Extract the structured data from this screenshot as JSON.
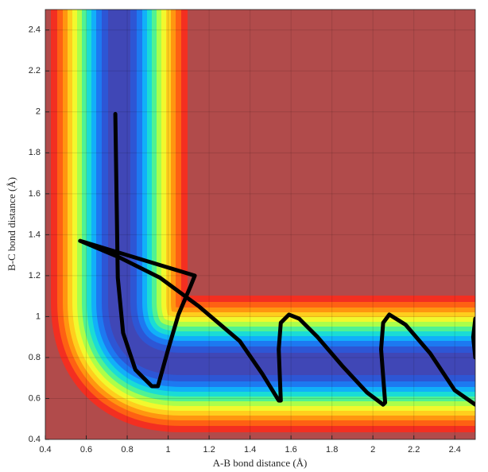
{
  "chart_data": {
    "type": "line",
    "xlabel": "A-B bond distance (Å)",
    "ylabel": "B-C bond distance (Å)",
    "x": [
      0.742,
      0.754,
      0.78,
      0.84,
      0.92,
      0.95,
      1.0,
      1.05,
      1.11,
      1.13,
      0.57,
      0.76,
      0.96,
      1.15,
      1.35,
      1.46,
      1.54,
      1.55,
      1.54,
      1.55,
      1.59,
      1.64,
      1.73,
      1.85,
      1.97,
      2.05,
      2.06,
      2.04,
      2.05,
      2.08,
      2.16,
      2.28,
      2.4,
      2.5,
      null,
      2.5,
      2.49,
      2.5
    ],
    "values": [
      1.99,
      1.19,
      0.92,
      0.74,
      0.66,
      0.66,
      0.84,
      1.01,
      1.15,
      1.2,
      1.37,
      1.29,
      1.19,
      1.05,
      0.88,
      0.72,
      0.59,
      0.59,
      0.84,
      0.97,
      1.01,
      0.99,
      0.9,
      0.76,
      0.63,
      0.57,
      0.58,
      0.84,
      0.97,
      1.01,
      0.96,
      0.82,
      0.64,
      0.57,
      null,
      0.99,
      0.9,
      0.8
    ],
    "color": "#000000",
    "xlim": [
      0.4,
      2.5
    ],
    "ylim": [
      0.4,
      2.5
    ],
    "xticks": [
      0.4,
      0.6,
      0.8,
      1,
      1.2,
      1.4,
      1.6,
      1.8,
      2,
      2.2,
      2.4
    ],
    "yticks": [
      0.4,
      0.6,
      0.8,
      1,
      1.2,
      1.4,
      1.6,
      1.8,
      2,
      2.2,
      2.4
    ],
    "grid": true
  }
}
